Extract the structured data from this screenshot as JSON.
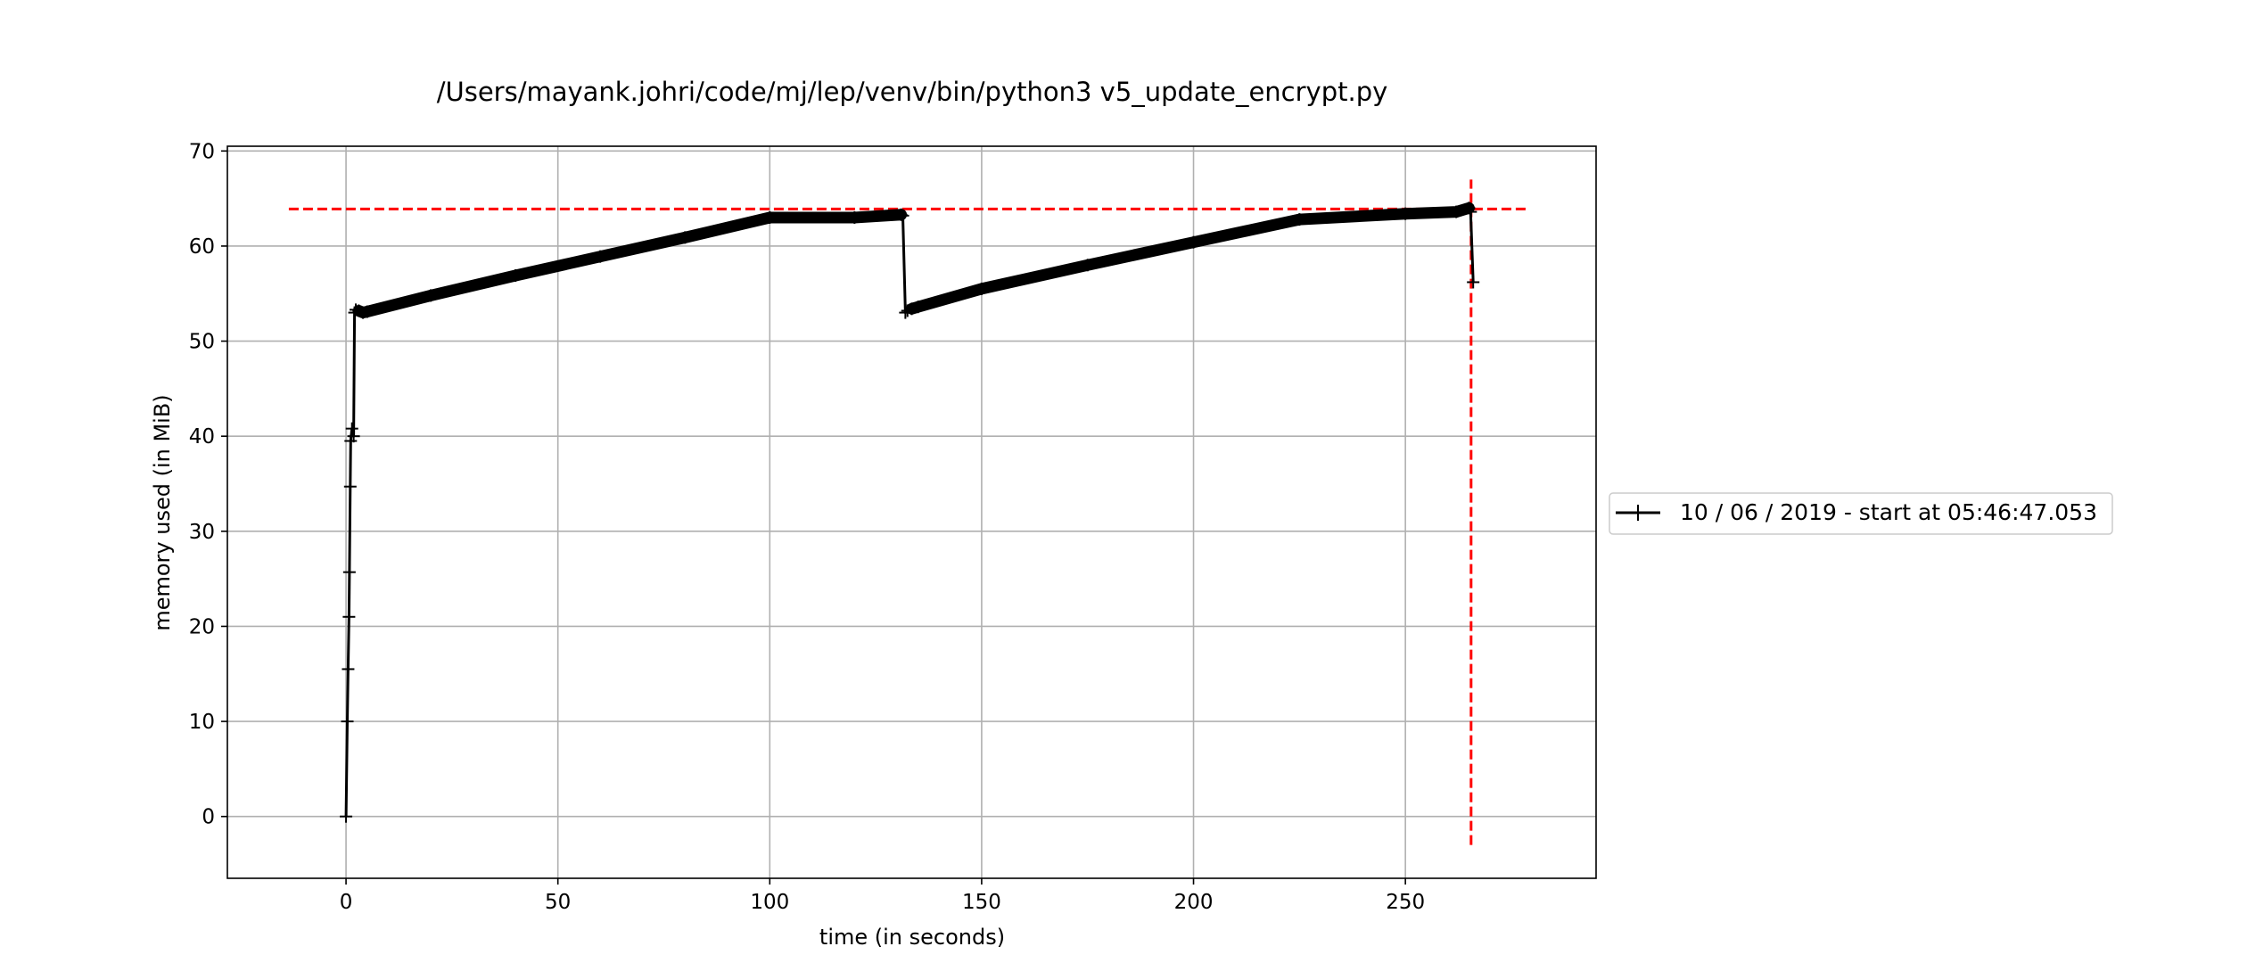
{
  "chart_data": {
    "type": "line",
    "title": "/Users/mayank.johri/code/mj/lep/venv/bin/python3 v5_update_encrypt.py",
    "xlabel": "time (in seconds)",
    "ylabel": "memory used (in MiB)",
    "xlim": [
      -28,
      295
    ],
    "ylim": [
      -6.5,
      70.5
    ],
    "xticks": [
      0,
      50,
      100,
      150,
      200,
      250
    ],
    "yticks": [
      0,
      10,
      20,
      30,
      40,
      50,
      60,
      70
    ],
    "grid": true,
    "legend_position": "right",
    "series": [
      {
        "name": "10 / 06 / 2019 - start at 05:46:47.053",
        "color": "#000000",
        "marker": "+",
        "x": [
          0,
          0.3,
          0.5,
          0.7,
          0.8,
          1.0,
          1.1,
          1.4,
          1.8,
          2.0,
          2.3,
          3.0,
          4.0,
          5.0,
          20,
          40,
          60,
          80,
          100,
          120,
          131.0,
          131.4,
          132.0,
          132.5,
          133.5,
          135,
          150,
          175,
          200,
          225,
          250,
          262,
          265.0,
          265.4,
          266.0
        ],
        "y": [
          0,
          10,
          15.5,
          21,
          25.7,
          34.7,
          39.5,
          40.8,
          40.0,
          53.0,
          53.3,
          53.2,
          53.0,
          53.1,
          54.8,
          56.9,
          58.9,
          60.9,
          63.0,
          63.0,
          63.3,
          63.2,
          53.0,
          53.2,
          53.4,
          53.6,
          55.5,
          58.0,
          60.4,
          62.8,
          63.4,
          63.6,
          64.0,
          63.6,
          56.2
        ]
      }
    ],
    "annotations": [
      {
        "type": "hline",
        "y": 63.9,
        "x_from": -13.5,
        "x_to": 279,
        "color": "#ff0000",
        "style": "dashed"
      },
      {
        "type": "vline",
        "x": 265.5,
        "y_from": -3,
        "y_to": 67,
        "color": "#ff0000",
        "style": "dashed"
      }
    ]
  }
}
